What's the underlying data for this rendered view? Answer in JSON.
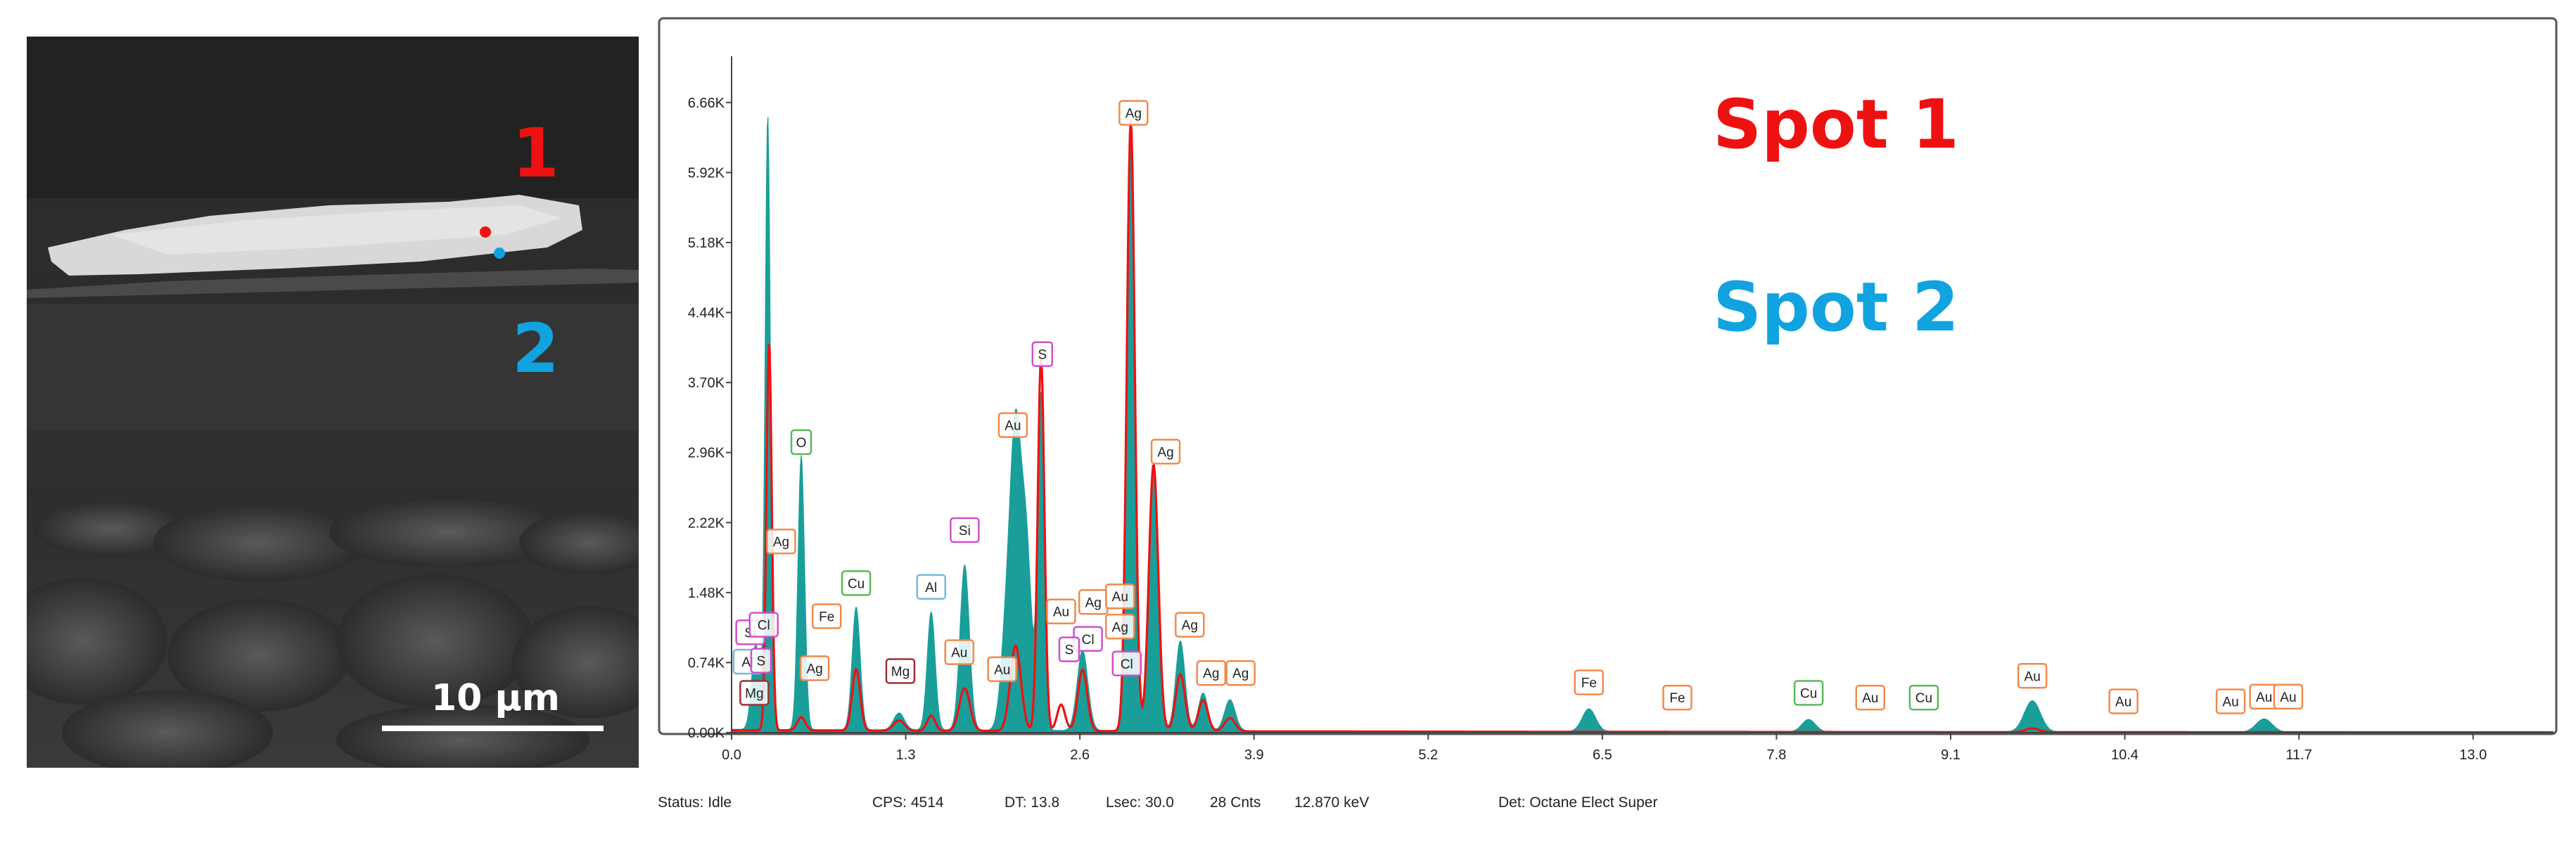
{
  "sem_image": {
    "spot1_label": "1",
    "spot2_label": "2",
    "scale_bar_label": "10 µm",
    "spot1_color": "#ee1111",
    "spot2_color": "#11a3e0"
  },
  "status_bar": {
    "status": "Status: Idle",
    "cps": "CPS: 4514",
    "dt": "DT: 13.8",
    "lsec": "Lsec: 30.0",
    "cnts": "28 Cnts",
    "kev": "12.870 keV",
    "detector": "Det: Octane Elect Super"
  },
  "chart_data": {
    "type": "line",
    "xlim": [
      0,
      13.6
    ],
    "ylim": [
      0,
      7000
    ],
    "x_ticks": [
      0.0,
      1.3,
      2.6,
      3.9,
      5.2,
      6.5,
      7.8,
      9.1,
      10.4,
      11.7,
      13.0
    ],
    "x_tick_labels": [
      "0.0",
      "1.3",
      "2.6",
      "3.9",
      "5.2",
      "6.5",
      "7.8",
      "9.1",
      "10.4",
      "11.7",
      "13.0"
    ],
    "y_ticks": [
      0,
      740,
      1480,
      2220,
      2960,
      3700,
      4440,
      5180,
      5920,
      6660
    ],
    "y_tick_labels": [
      "0.00K",
      "0.74K",
      "1.48K",
      "2.22K",
      "2.96K",
      "3.70K",
      "4.44K",
      "5.18K",
      "5.92K",
      "6.66K"
    ],
    "grid": false,
    "series": [
      {
        "name": "Spot 1",
        "color": "#ee1111",
        "style": "line",
        "baseline": 25,
        "peaks": [
          {
            "x": 0.28,
            "y": 4100,
            "w": 0.02
          },
          {
            "x": 0.52,
            "y": 140,
            "w": 0.03
          },
          {
            "x": 0.93,
            "y": 650,
            "w": 0.03
          },
          {
            "x": 1.25,
            "y": 110,
            "w": 0.04
          },
          {
            "x": 1.49,
            "y": 160,
            "w": 0.03
          },
          {
            "x": 1.74,
            "y": 450,
            "w": 0.04
          },
          {
            "x": 2.12,
            "y": 900,
            "w": 0.04
          },
          {
            "x": 2.31,
            "y": 3950,
            "w": 0.025
          },
          {
            "x": 2.46,
            "y": 280,
            "w": 0.03
          },
          {
            "x": 2.62,
            "y": 650,
            "w": 0.035
          },
          {
            "x": 2.98,
            "y": 6460,
            "w": 0.03
          },
          {
            "x": 3.15,
            "y": 2820,
            "w": 0.035
          },
          {
            "x": 3.35,
            "y": 600,
            "w": 0.035
          },
          {
            "x": 3.52,
            "y": 330,
            "w": 0.035
          },
          {
            "x": 3.72,
            "y": 140,
            "w": 0.04
          },
          {
            "x": 9.71,
            "y": 40,
            "w": 0.05
          }
        ]
      },
      {
        "name": "Spot 2",
        "color": "#1a9e9a",
        "style": "area",
        "baseline": 35,
        "peaks": [
          {
            "x": 0.18,
            "y": 900,
            "w": 0.03
          },
          {
            "x": 0.27,
            "y": 6500,
            "w": 0.02
          },
          {
            "x": 0.52,
            "y": 2900,
            "w": 0.025
          },
          {
            "x": 0.93,
            "y": 1300,
            "w": 0.03
          },
          {
            "x": 1.25,
            "y": 180,
            "w": 0.04
          },
          {
            "x": 1.49,
            "y": 1250,
            "w": 0.03
          },
          {
            "x": 1.74,
            "y": 1750,
            "w": 0.035
          },
          {
            "x": 2.05,
            "y": 1000,
            "w": 0.04
          },
          {
            "x": 2.12,
            "y": 2920,
            "w": 0.04
          },
          {
            "x": 2.2,
            "y": 1900,
            "w": 0.04
          },
          {
            "x": 2.31,
            "y": 3550,
            "w": 0.025
          },
          {
            "x": 2.62,
            "y": 850,
            "w": 0.04
          },
          {
            "x": 2.98,
            "y": 6300,
            "w": 0.03
          },
          {
            "x": 3.15,
            "y": 2800,
            "w": 0.035
          },
          {
            "x": 3.35,
            "y": 950,
            "w": 0.035
          },
          {
            "x": 3.52,
            "y": 400,
            "w": 0.035
          },
          {
            "x": 3.72,
            "y": 330,
            "w": 0.04
          },
          {
            "x": 6.4,
            "y": 240,
            "w": 0.05
          },
          {
            "x": 8.04,
            "y": 130,
            "w": 0.05
          },
          {
            "x": 9.71,
            "y": 330,
            "w": 0.06
          },
          {
            "x": 11.44,
            "y": 140,
            "w": 0.06
          }
        ]
      }
    ],
    "annotations": [
      {
        "text": "Spot 1",
        "color": "#ee1111"
      },
      {
        "text": "Spot 2",
        "color": "#11a3e0"
      }
    ],
    "element_tags": [
      {
        "label": "Ag",
        "x": 3.0,
        "y": 6550,
        "color": "#f08a4b"
      },
      {
        "label": "S",
        "x": 2.32,
        "y": 4000,
        "color": "#d04ed0"
      },
      {
        "label": "Au",
        "x": 2.1,
        "y": 3250,
        "color": "#f08a4b"
      },
      {
        "label": "O",
        "x": 0.52,
        "y": 3070,
        "color": "#5cb85c"
      },
      {
        "label": "Ag",
        "x": 3.24,
        "y": 2970,
        "color": "#f08a4b"
      },
      {
        "label": "Ag",
        "x": 0.37,
        "y": 2020,
        "color": "#f08a4b"
      },
      {
        "label": "Si",
        "x": 1.74,
        "y": 2140,
        "color": "#d04ed0"
      },
      {
        "label": "Cu",
        "x": 0.93,
        "y": 1580,
        "color": "#5cb85c"
      },
      {
        "label": "Al",
        "x": 1.49,
        "y": 1540,
        "color": "#7ab8d8"
      },
      {
        "label": "Fe",
        "x": 0.71,
        "y": 1230,
        "color": "#f08a4b"
      },
      {
        "label": "Au",
        "x": 2.46,
        "y": 1280,
        "color": "#f08a4b"
      },
      {
        "label": "Ag",
        "x": 2.7,
        "y": 1380,
        "color": "#f08a4b"
      },
      {
        "label": "Au",
        "x": 2.9,
        "y": 1440,
        "color": "#f08a4b"
      },
      {
        "label": "Ag",
        "x": 2.9,
        "y": 1120,
        "color": "#f08a4b"
      },
      {
        "label": "Cl",
        "x": 2.66,
        "y": 990,
        "color": "#d04ed0"
      },
      {
        "label": "S",
        "x": 2.52,
        "y": 880,
        "color": "#d04ed0"
      },
      {
        "label": "Cl",
        "x": 2.95,
        "y": 730,
        "color": "#d04ed0"
      },
      {
        "label": "Ag",
        "x": 3.42,
        "y": 1140,
        "color": "#f08a4b"
      },
      {
        "label": "Au",
        "x": 1.7,
        "y": 850,
        "color": "#f08a4b"
      },
      {
        "label": "Au",
        "x": 2.02,
        "y": 670,
        "color": "#f08a4b"
      },
      {
        "label": "Mg",
        "x": 1.26,
        "y": 650,
        "color": "#a12e3a"
      },
      {
        "label": "Ag",
        "x": 0.62,
        "y": 680,
        "color": "#f08a4b"
      },
      {
        "label": "Ag",
        "x": 3.58,
        "y": 630,
        "color": "#f08a4b"
      },
      {
        "label": "Ag",
        "x": 3.8,
        "y": 630,
        "color": "#f08a4b"
      },
      {
        "label": "Si",
        "x": 0.14,
        "y": 1060,
        "color": "#d04ed0"
      },
      {
        "label": "Cl",
        "x": 0.24,
        "y": 1140,
        "color": "#d04ed0"
      },
      {
        "label": "Al",
        "x": 0.12,
        "y": 750,
        "color": "#7ab8d8"
      },
      {
        "label": "S",
        "x": 0.22,
        "y": 760,
        "color": "#d04ed0"
      },
      {
        "label": "Mg",
        "x": 0.17,
        "y": 420,
        "color": "#a12e3a"
      },
      {
        "label": "Fe",
        "x": 6.4,
        "y": 530,
        "color": "#f08a4b"
      },
      {
        "label": "Fe",
        "x": 7.06,
        "y": 370,
        "color": "#f08a4b"
      },
      {
        "label": "Cu",
        "x": 8.04,
        "y": 420,
        "color": "#5cb85c"
      },
      {
        "label": "Au",
        "x": 8.5,
        "y": 370,
        "color": "#f08a4b"
      },
      {
        "label": "Cu",
        "x": 8.9,
        "y": 370,
        "color": "#5cb85c"
      },
      {
        "label": "Au",
        "x": 9.71,
        "y": 600,
        "color": "#f08a4b"
      },
      {
        "label": "Au",
        "x": 10.39,
        "y": 330,
        "color": "#f08a4b"
      },
      {
        "label": "Au",
        "x": 11.19,
        "y": 330,
        "color": "#f08a4b"
      },
      {
        "label": "Au",
        "x": 11.44,
        "y": 380,
        "color": "#f08a4b"
      },
      {
        "label": "Au",
        "x": 11.62,
        "y": 380,
        "color": "#f08a4b"
      }
    ]
  }
}
